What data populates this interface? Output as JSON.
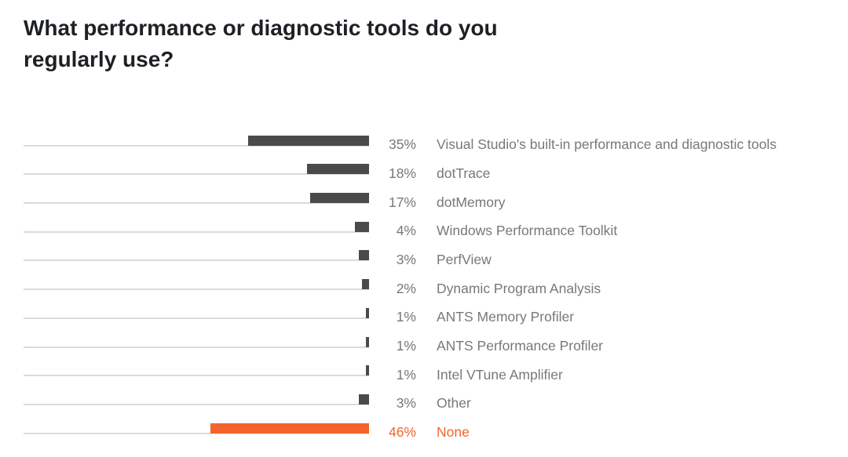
{
  "title": {
    "text": "What performance or diagnostic tools do you regularly use?",
    "color": "#1d2125"
  },
  "chart_data": {
    "type": "bar",
    "orientation": "horizontal",
    "unit": "%",
    "axis_range": [
      0,
      100
    ],
    "legend": "none",
    "grid": "per-row baseline track lines",
    "categories": [
      "Visual Studio's built-in performance and diagnostic tools",
      "dotTrace",
      "dotMemory",
      "Windows Performance Toolkit",
      "PerfView",
      "Dynamic Program Analysis",
      "ANTS Memory Profiler",
      "ANTS Performance Profiler",
      "Intel VTune Amplifier",
      "Other",
      "None"
    ],
    "values": [
      35,
      18,
      17,
      4,
      3,
      2,
      1,
      1,
      1,
      3,
      46
    ],
    "items": [
      {
        "label": "Visual Studio's built-in performance and diagnostic tools",
        "value": 35,
        "display": "35%",
        "highlight": false
      },
      {
        "label": "dotTrace",
        "value": 18,
        "display": "18%",
        "highlight": false
      },
      {
        "label": "dotMemory",
        "value": 17,
        "display": "17%",
        "highlight": false
      },
      {
        "label": "Windows Performance Toolkit",
        "value": 4,
        "display": "4%",
        "highlight": false
      },
      {
        "label": "PerfView",
        "value": 3,
        "display": "3%",
        "highlight": false
      },
      {
        "label": "Dynamic Program Analysis",
        "value": 2,
        "display": "2%",
        "highlight": false
      },
      {
        "label": "ANTS Memory Profiler",
        "value": 1,
        "display": "1%",
        "highlight": false
      },
      {
        "label": "ANTS Performance Profiler",
        "value": 1,
        "display": "1%",
        "highlight": false
      },
      {
        "label": "Intel VTune Amplifier",
        "value": 1,
        "display": "1%",
        "highlight": false
      },
      {
        "label": "Other",
        "value": 3,
        "display": "3%",
        "highlight": false
      },
      {
        "label": "None",
        "value": 46,
        "display": "46%",
        "highlight": true
      }
    ],
    "colors": {
      "bar": "#494a4c",
      "highlight": "#f4632c",
      "track_line": "#dbdbdb",
      "label": "#77787b"
    }
  }
}
